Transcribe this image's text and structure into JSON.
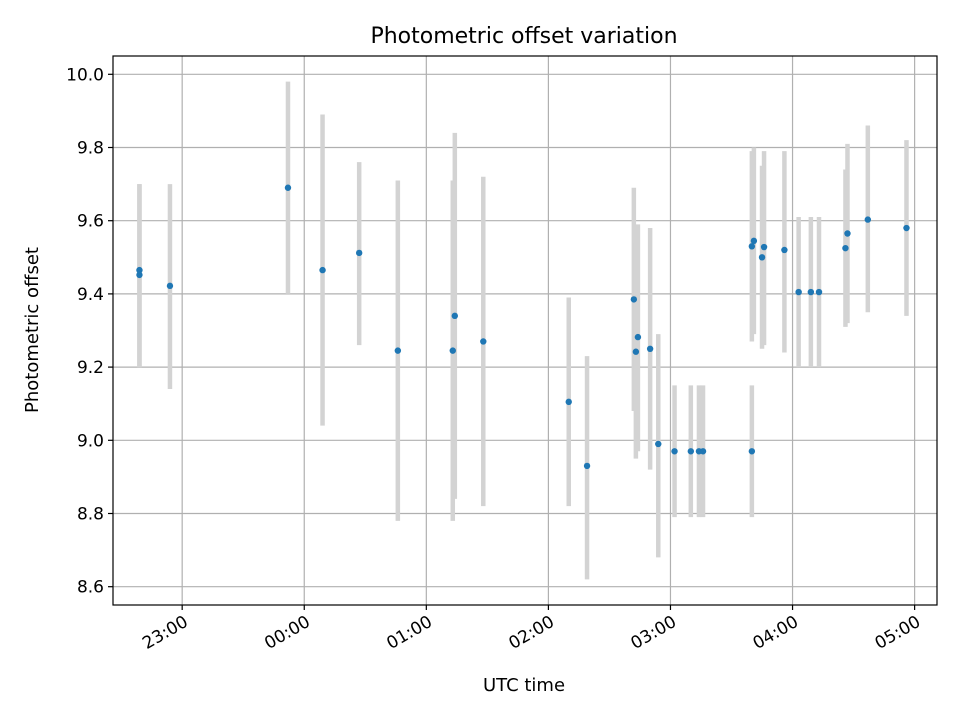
{
  "chart_data": {
    "type": "scatter",
    "title": "Photometric offset variation",
    "xlabel": "UTC time",
    "ylabel": "Photometric offset",
    "grid": true,
    "ylim": [
      8.55,
      10.05
    ],
    "xlim": [
      "22:26",
      "05:11"
    ],
    "yticks": [
      "8.6",
      "8.8",
      "9.0",
      "9.2",
      "9.4",
      "9.6",
      "9.8",
      "10.0"
    ],
    "xticks": [
      "23:00",
      "00:00",
      "01:00",
      "02:00",
      "03:00",
      "04:00",
      "05:00"
    ],
    "colors": {
      "point": "#1f77b4",
      "errorbar": "#d3d3d3",
      "grid": "#b0b0b0"
    },
    "points": [
      {
        "t": "22:39",
        "y": 9.465,
        "low": 9.2,
        "high": 9.7
      },
      {
        "t": "22:39",
        "y": 9.452,
        "low": 9.2,
        "high": 9.7
      },
      {
        "t": "22:54",
        "y": 9.422,
        "low": 9.14,
        "high": 9.7
      },
      {
        "t": "23:52",
        "y": 9.69,
        "low": 9.4,
        "high": 9.98
      },
      {
        "t": "00:09",
        "y": 9.465,
        "low": 9.04,
        "high": 9.89
      },
      {
        "t": "00:27",
        "y": 9.512,
        "low": 9.26,
        "high": 9.76
      },
      {
        "t": "00:46",
        "y": 9.245,
        "low": 8.78,
        "high": 9.71
      },
      {
        "t": "01:13",
        "y": 9.245,
        "low": 8.78,
        "high": 9.71
      },
      {
        "t": "01:14",
        "y": 9.34,
        "low": 8.84,
        "high": 9.84
      },
      {
        "t": "01:28",
        "y": 9.27,
        "low": 8.82,
        "high": 9.72
      },
      {
        "t": "02:10",
        "y": 9.105,
        "low": 8.82,
        "high": 9.39
      },
      {
        "t": "02:19",
        "y": 8.93,
        "low": 8.62,
        "high": 9.23
      },
      {
        "t": "02:42",
        "y": 9.385,
        "low": 9.08,
        "high": 9.69
      },
      {
        "t": "02:43",
        "y": 9.242,
        "low": 8.95,
        "high": 9.54
      },
      {
        "t": "02:44",
        "y": 9.282,
        "low": 8.97,
        "high": 9.59
      },
      {
        "t": "02:50",
        "y": 9.25,
        "low": 8.92,
        "high": 9.58
      },
      {
        "t": "02:54",
        "y": 8.99,
        "low": 8.68,
        "high": 9.29
      },
      {
        "t": "03:02",
        "y": 8.97,
        "low": 8.79,
        "high": 9.15
      },
      {
        "t": "03:10",
        "y": 8.97,
        "low": 8.79,
        "high": 9.15
      },
      {
        "t": "03:14",
        "y": 8.97,
        "low": 8.79,
        "high": 9.15
      },
      {
        "t": "03:16",
        "y": 8.97,
        "low": 8.79,
        "high": 9.15
      },
      {
        "t": "03:40",
        "y": 8.97,
        "low": 8.79,
        "high": 9.15
      },
      {
        "t": "03:40",
        "y": 9.53,
        "low": 9.27,
        "high": 9.79
      },
      {
        "t": "03:41",
        "y": 9.545,
        "low": 9.29,
        "high": 9.8
      },
      {
        "t": "03:45",
        "y": 9.5,
        "low": 9.25,
        "high": 9.75
      },
      {
        "t": "03:46",
        "y": 9.528,
        "low": 9.26,
        "high": 9.79
      },
      {
        "t": "03:56",
        "y": 9.52,
        "low": 9.24,
        "high": 9.79
      },
      {
        "t": "04:03",
        "y": 9.405,
        "low": 9.2,
        "high": 9.61
      },
      {
        "t": "04:09",
        "y": 9.405,
        "low": 9.2,
        "high": 9.61
      },
      {
        "t": "04:13",
        "y": 9.405,
        "low": 9.2,
        "high": 9.61
      },
      {
        "t": "04:26",
        "y": 9.525,
        "low": 9.31,
        "high": 9.74
      },
      {
        "t": "04:27",
        "y": 9.565,
        "low": 9.32,
        "high": 9.81
      },
      {
        "t": "04:37",
        "y": 9.603,
        "low": 9.35,
        "high": 9.86
      },
      {
        "t": "04:56",
        "y": 9.58,
        "low": 9.34,
        "high": 9.82
      }
    ]
  }
}
